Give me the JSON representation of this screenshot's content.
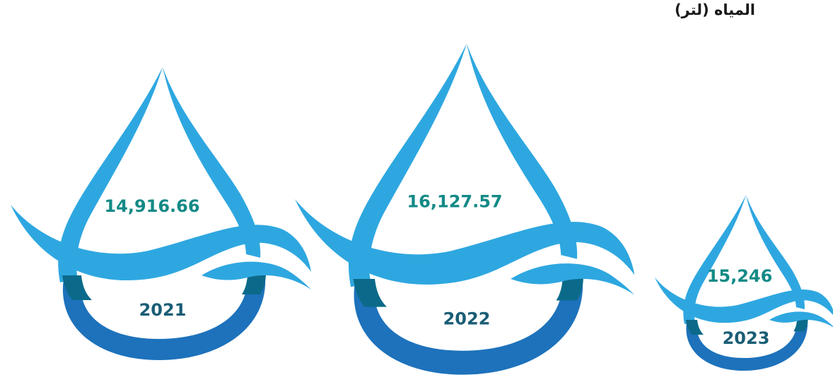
{
  "title": "المياه (لتر)",
  "colors": {
    "drop_light": "#2ea7e0",
    "drop_dark": "#1d72bb",
    "band_shadow": "#0b6a8a",
    "value_text": "#138a86",
    "year_text": "#1a5d76"
  },
  "chart_data": {
    "type": "bar",
    "title": "المياه (لتر)",
    "categories": [
      "2021",
      "2022",
      "2023"
    ],
    "values": [
      14916.66,
      16127.57,
      15246
    ],
    "value_labels": [
      "14,916.66",
      "16,127.57",
      "15,246"
    ]
  }
}
